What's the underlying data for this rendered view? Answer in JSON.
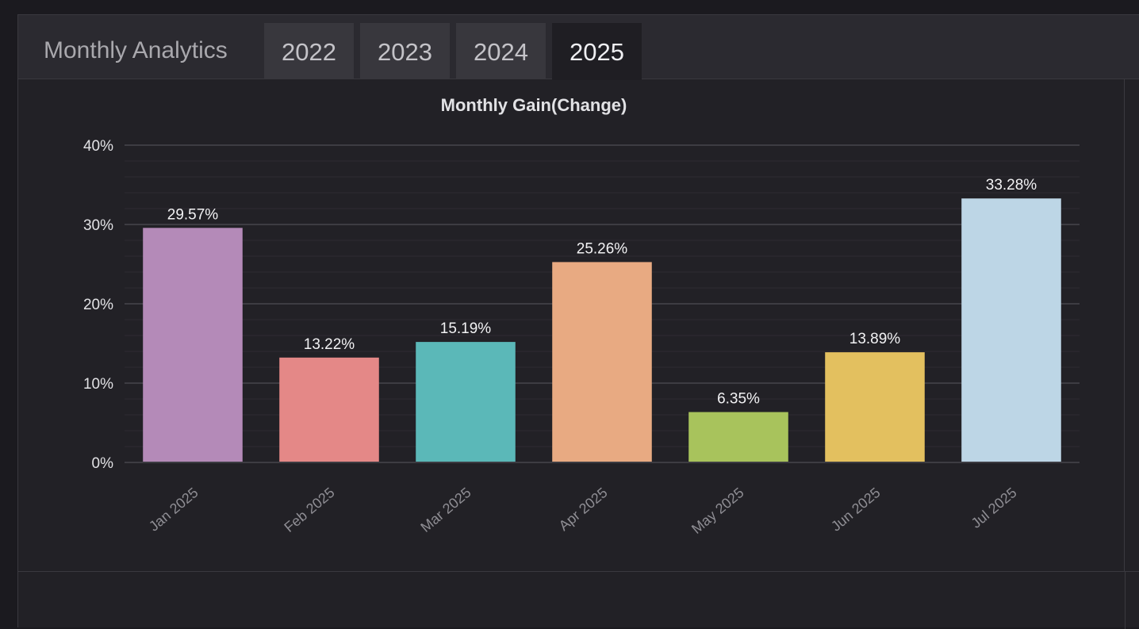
{
  "header": {
    "title": "Monthly Analytics",
    "tabs": [
      {
        "label": "2022",
        "active": false
      },
      {
        "label": "2023",
        "active": false
      },
      {
        "label": "2024",
        "active": false
      },
      {
        "label": "2025",
        "active": true
      }
    ]
  },
  "colors": {
    "background": "#1b1a1f",
    "panel": "#222126",
    "grid": "#3a393f",
    "text": "#e8e8ea"
  },
  "chart_data": {
    "type": "bar",
    "title": "Monthly Gain(Change)",
    "xlabel": "",
    "ylabel": "",
    "categories": [
      "Jan 2025",
      "Feb 2025",
      "Mar 2025",
      "Apr 2025",
      "May 2025",
      "Jun 2025",
      "Jul 2025"
    ],
    "values": [
      29.57,
      13.22,
      15.19,
      25.26,
      6.35,
      13.89,
      33.28
    ],
    "value_labels": [
      "29.57%",
      "13.22%",
      "15.19%",
      "25.26%",
      "6.35%",
      "13.89%",
      "33.28%"
    ],
    "bar_colors": [
      "#b48ab8",
      "#e48887",
      "#5bb8b8",
      "#e8aa82",
      "#a8c35c",
      "#e3c05f",
      "#bdd6e6"
    ],
    "ylim": [
      0,
      40
    ],
    "yticks": [
      0,
      10,
      20,
      30,
      40
    ],
    "ytick_labels": [
      "0%",
      "10%",
      "20%",
      "30%",
      "40%"
    ],
    "grid": true,
    "legend": "none"
  }
}
